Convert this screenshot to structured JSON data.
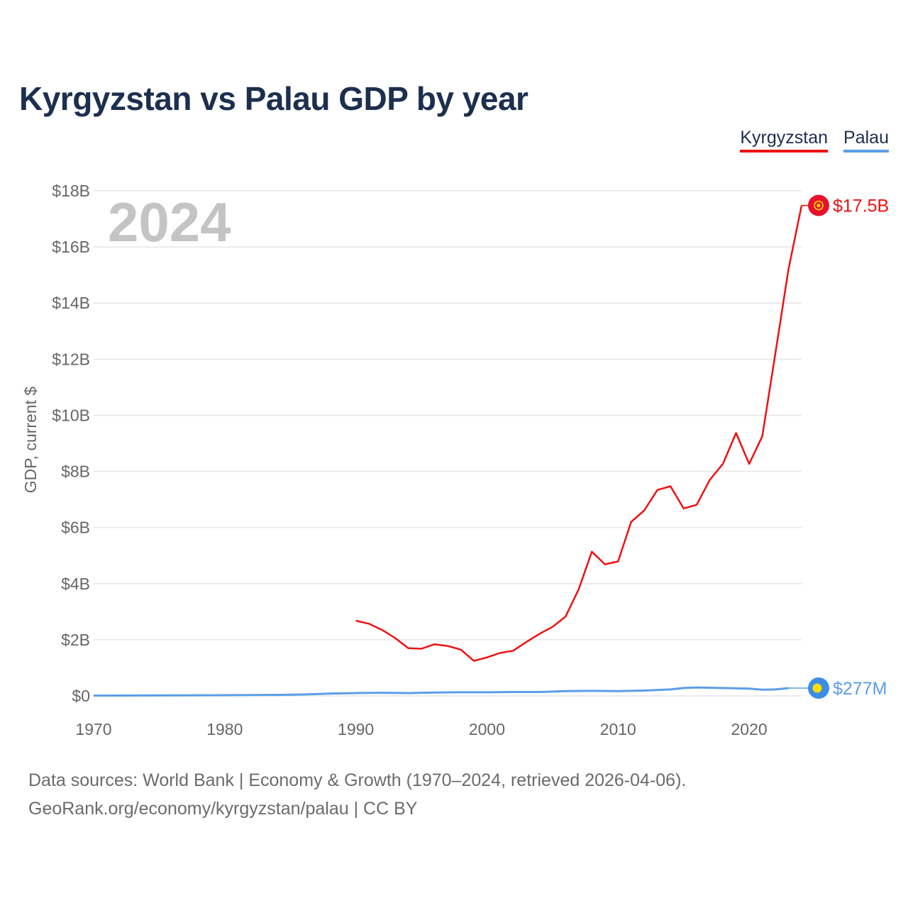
{
  "header": {
    "title": "Kyrgyzstan vs Palau GDP by year"
  },
  "legend": {
    "items": [
      {
        "label": "Kyrgyzstan"
      },
      {
        "label": "Palau"
      }
    ]
  },
  "colors": {
    "kyrgyzstan": "#ee1111",
    "palau": "#5b9ee6",
    "title": "#1c2f4e",
    "year_watermark": "#c4c4c4"
  },
  "chart_data": {
    "type": "line",
    "title": "Kyrgyzstan vs Palau GDP by year",
    "xlabel": "",
    "ylabel": "GDP, current $",
    "current_year": "2024",
    "xlim": [
      1970,
      2024
    ],
    "ylim": [
      0,
      18
    ],
    "y_unit": "billion USD",
    "x_ticks": [
      {
        "value": 1970,
        "label": "1970"
      },
      {
        "value": 1980,
        "label": "1980"
      },
      {
        "value": 1990,
        "label": "1990"
      },
      {
        "value": 2000,
        "label": "2000"
      },
      {
        "value": 2010,
        "label": "2010"
      },
      {
        "value": 2020,
        "label": "2020"
      }
    ],
    "y_ticks": [
      {
        "value": 0,
        "label": "$0"
      },
      {
        "value": 2,
        "label": "$2B"
      },
      {
        "value": 4,
        "label": "$4B"
      },
      {
        "value": 6,
        "label": "$6B"
      },
      {
        "value": 8,
        "label": "$8B"
      },
      {
        "value": 10,
        "label": "$10B"
      },
      {
        "value": 12,
        "label": "$12B"
      },
      {
        "value": 14,
        "label": "$14B"
      },
      {
        "value": 16,
        "label": "$16B"
      },
      {
        "value": 18,
        "label": "$18B"
      }
    ],
    "grid": true,
    "series": [
      {
        "name": "Kyrgyzstan",
        "color": "#ee1111",
        "end_label": "$17.5B",
        "end_icon": "kyrgyzstan-flag-icon",
        "points": [
          [
            1990,
            2.68
          ],
          [
            1991,
            2.57
          ],
          [
            1992,
            2.35
          ],
          [
            1993,
            2.06
          ],
          [
            1994,
            1.7
          ],
          [
            1995,
            1.68
          ],
          [
            1996,
            1.84
          ],
          [
            1997,
            1.78
          ],
          [
            1998,
            1.65
          ],
          [
            1999,
            1.25
          ],
          [
            2000,
            1.37
          ],
          [
            2001,
            1.53
          ],
          [
            2002,
            1.61
          ],
          [
            2003,
            1.92
          ],
          [
            2004,
            2.21
          ],
          [
            2005,
            2.46
          ],
          [
            2006,
            2.83
          ],
          [
            2007,
            3.8
          ],
          [
            2008,
            5.14
          ],
          [
            2009,
            4.69
          ],
          [
            2010,
            4.79
          ],
          [
            2011,
            6.2
          ],
          [
            2012,
            6.61
          ],
          [
            2013,
            7.34
          ],
          [
            2014,
            7.47
          ],
          [
            2015,
            6.68
          ],
          [
            2016,
            6.81
          ],
          [
            2017,
            7.7
          ],
          [
            2018,
            8.27
          ],
          [
            2019,
            9.37
          ],
          [
            2020,
            8.27
          ],
          [
            2021,
            9.25
          ],
          [
            2022,
            12.2
          ],
          [
            2023,
            15.2
          ],
          [
            2024,
            17.48
          ]
        ]
      },
      {
        "name": "Palau",
        "color": "#5b9ee6",
        "end_label": "$277M",
        "end_icon": "palau-flag-icon",
        "points": [
          [
            1970,
            0.01
          ],
          [
            1972,
            0.012
          ],
          [
            1974,
            0.015
          ],
          [
            1976,
            0.018
          ],
          [
            1978,
            0.022
          ],
          [
            1980,
            0.026
          ],
          [
            1982,
            0.03
          ],
          [
            1984,
            0.035
          ],
          [
            1986,
            0.05
          ],
          [
            1988,
            0.08
          ],
          [
            1990,
            0.1
          ],
          [
            1992,
            0.11
          ],
          [
            1994,
            0.1
          ],
          [
            1996,
            0.12
          ],
          [
            1998,
            0.13
          ],
          [
            2000,
            0.13
          ],
          [
            2002,
            0.14
          ],
          [
            2004,
            0.14
          ],
          [
            2006,
            0.17
          ],
          [
            2008,
            0.18
          ],
          [
            2010,
            0.17
          ],
          [
            2012,
            0.19
          ],
          [
            2014,
            0.23
          ],
          [
            2015,
            0.28
          ],
          [
            2016,
            0.3
          ],
          [
            2018,
            0.28
          ],
          [
            2020,
            0.26
          ],
          [
            2021,
            0.22
          ],
          [
            2022,
            0.23
          ],
          [
            2023,
            0.277
          ]
        ]
      }
    ],
    "source": "Data sources: World Bank | Economy & Growth (1970–2024, retrieved 2026-04-06).",
    "url": "GeoRank.org/economy/kyrgyzstan/palau | CC BY"
  }
}
